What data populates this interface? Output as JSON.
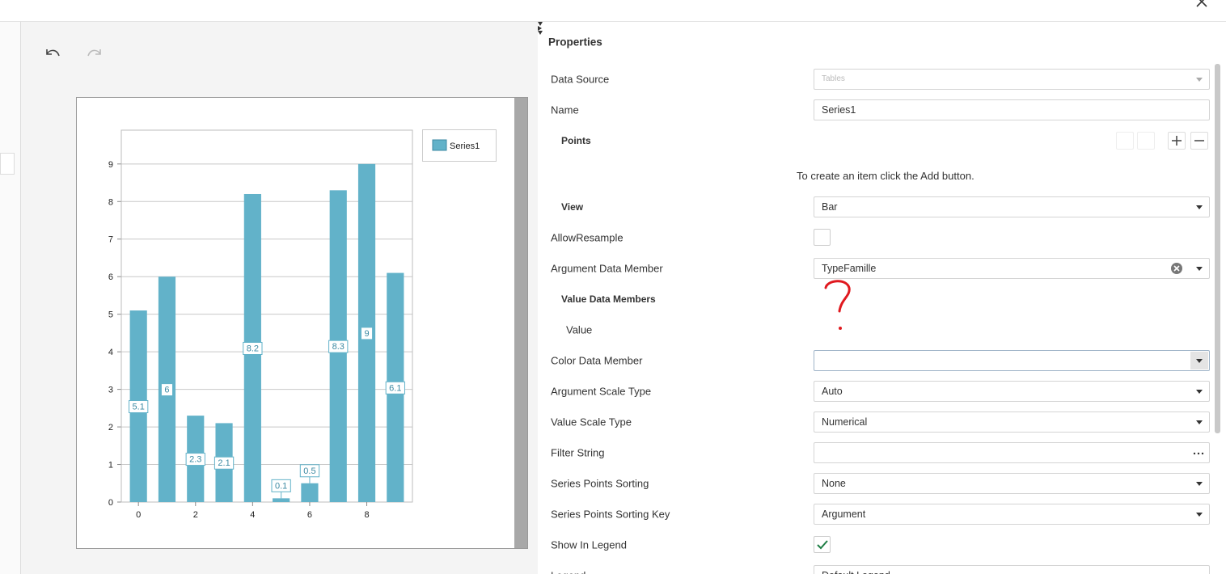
{
  "panel": {
    "title": "Properties",
    "rows": [
      {
        "label": "Data Source",
        "kind": "dropdown",
        "value": "Tables",
        "disabled": true
      },
      {
        "label": "Name",
        "kind": "text",
        "value": "Series1"
      },
      {
        "label": "Points",
        "kind": "section",
        "expanded": true,
        "hint": "To create an item click the Add button."
      },
      {
        "label": "View",
        "kind": "section-dropdown",
        "expanded": false,
        "value": "Bar"
      },
      {
        "label": "AllowResample",
        "kind": "checkbox",
        "checked": false
      },
      {
        "label": "Argument Data Member",
        "kind": "dropdown-clear",
        "value": "TypeFamille"
      },
      {
        "label": "Value Data Members",
        "kind": "section",
        "expanded": true
      },
      {
        "label": "Value",
        "kind": "sub"
      },
      {
        "label": "Color Data Member",
        "kind": "dropdown-focus",
        "value": ""
      },
      {
        "label": "Argument Scale Type",
        "kind": "dropdown",
        "value": "Auto"
      },
      {
        "label": "Value Scale Type",
        "kind": "dropdown",
        "value": "Numerical"
      },
      {
        "label": "Filter String",
        "kind": "ellipsis",
        "value": ""
      },
      {
        "label": "Series Points Sorting",
        "kind": "dropdown",
        "value": "None"
      },
      {
        "label": "Series Points Sorting Key",
        "kind": "dropdown",
        "value": "Argument"
      },
      {
        "label": "Show In Legend",
        "kind": "checkbox",
        "checked": true
      },
      {
        "label": "Legend",
        "kind": "dropdown",
        "value": "Default Legend"
      }
    ]
  },
  "chart_data": {
    "type": "bar",
    "x": [
      0,
      1,
      2,
      3,
      4,
      5,
      6,
      7,
      8,
      9
    ],
    "series": [
      {
        "name": "Series1",
        "color": "#62b2c9",
        "values": [
          5.1,
          6,
          2.3,
          2.1,
          8.2,
          0.1,
          0.5,
          8.3,
          9,
          6.1
        ]
      }
    ],
    "xlim": [
      -0.6,
      9.6
    ],
    "ylim": [
      0,
      9.9
    ],
    "xticks": [
      0,
      2,
      4,
      6,
      8
    ],
    "yticks": [
      0,
      1,
      2,
      3,
      4,
      5,
      6,
      7,
      8,
      9
    ],
    "grid": true,
    "legend": "right",
    "data_labels": true
  }
}
